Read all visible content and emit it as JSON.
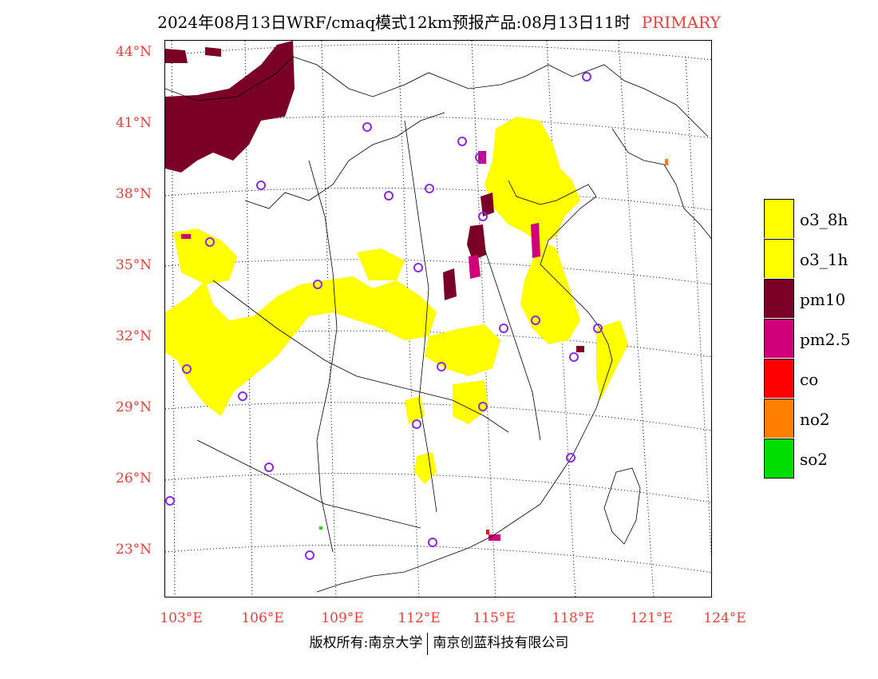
{
  "title": {
    "main": "2024年08月13日WRF/cmaq模式12km预报产品:08月13日11时",
    "tag": "PRIMARY"
  },
  "axes": {
    "lat_labels": [
      "44°N",
      "41°N",
      "38°N",
      "35°N",
      "32°N",
      "29°N",
      "26°N",
      "23°N"
    ],
    "lon_labels": [
      "103°E",
      "106°E",
      "109°E",
      "112°E",
      "115°E",
      "118°E",
      "121°E",
      "124°E"
    ]
  },
  "legend": [
    {
      "label": "o3_8h",
      "color": "#ffff00"
    },
    {
      "label": "o3_1h",
      "color": "#ffff00"
    },
    {
      "label": "pm10",
      "color": "#7a0028"
    },
    {
      "label": "pm2.5",
      "color": "#d0007a"
    },
    {
      "label": "co",
      "color": "#ff0000"
    },
    {
      "label": "no2",
      "color": "#ff7f00"
    },
    {
      "label": "so2",
      "color": "#00dd00"
    }
  ],
  "footer": {
    "left": "版权所有:南京大学",
    "right": "南京创蓝科技有限公司"
  },
  "colors": {
    "axis_text": "#e8403a",
    "station_marker": "#8a2be2"
  }
}
